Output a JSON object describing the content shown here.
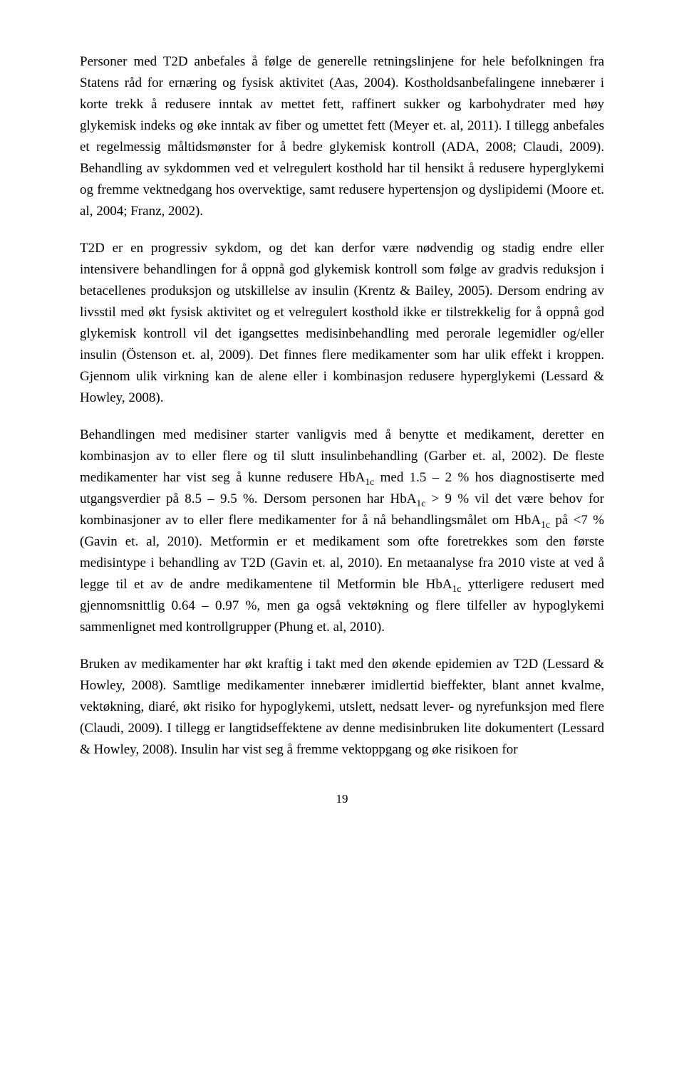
{
  "document": {
    "page_number": "19",
    "font_family": "Times New Roman",
    "text_color": "#000000",
    "background_color": "#ffffff",
    "font_size_pt": 12,
    "line_height": 1.58,
    "alignment": "justify",
    "paragraphs": [
      {
        "segments": [
          {
            "text": "Personer med T2D anbefales å følge de generelle retningslinjene for hele befolkningen fra Statens råd for ernæring og fysisk aktivitet (Aas, 2004). Kostholdsanbefalingene innebærer i korte trekk å redusere inntak av mettet fett, raffinert sukker og karbohydrater med høy glykemisk indeks og øke inntak av fiber og umettet fett (Meyer et. al, 2011). I tillegg anbefales et regelmessig måltidsmønster for å bedre glykemisk kontroll (ADA, 2008; Claudi, 2009). Behandling av sykdommen ved et velregulert kosthold har til hensikt å redusere hyperglykemi og fremme vektnedgang hos overvektige, samt redusere hypertensjon og dyslipidemi (Moore et. al, 2004; Franz, 2002)."
          }
        ]
      },
      {
        "segments": [
          {
            "text": "T2D er en progressiv sykdom, og det kan derfor være nødvendig og stadig endre eller intensivere behandlingen for å oppnå god glykemisk kontroll som følge av gradvis reduksjon i betacellenes produksjon og utskillelse av insulin (Krentz & Bailey, 2005). Dersom endring av livsstil med økt fysisk aktivitet og et velregulert kosthold ikke er tilstrekkelig for å oppnå god glykemisk kontroll vil det igangsettes medisinbehandling med perorale legemidler og/eller insulin (Östenson et. al, 2009). Det finnes flere medikamenter som har ulik effekt i kroppen. Gjennom ulik virkning kan de alene eller i kombinasjon redusere hyperglykemi (Lessard & Howley, 2008)."
          }
        ]
      },
      {
        "segments": [
          {
            "text": "Behandlingen med medisiner starter vanligvis med å benytte et medikament, deretter en kombinasjon av to eller flere og til slutt insulinbehandling (Garber et. al, 2002). De fleste medikamenter har vist seg å kunne redusere HbA"
          },
          {
            "text": "1c",
            "sub": true
          },
          {
            "text": " med 1.5 – 2 % hos diagnostiserte med utgangsverdier på 8.5 – 9.5 %. Dersom personen har HbA"
          },
          {
            "text": "1c",
            "sub": true
          },
          {
            "text": " > 9 % vil det være behov for kombinasjoner av to eller flere medikamenter for å nå behandlingsmålet om HbA"
          },
          {
            "text": "1c",
            "sub": true
          },
          {
            "text": " på <7 % (Gavin et. al, 2010).  Metformin er et medikament som ofte foretrekkes som den første medisintype i behandling av T2D (Gavin et. al, 2010). En metaanalyse fra 2010 viste at ved å legge til et av de andre medikamentene til Metformin ble HbA"
          },
          {
            "text": "1c",
            "sub": true
          },
          {
            "text": " ytterligere redusert med gjennomsnittlig 0.64 – 0.97 %, men ga også vektøkning og flere tilfeller av hypoglykemi sammenlignet med kontrollgrupper (Phung et. al, 2010)."
          }
        ]
      },
      {
        "segments": [
          {
            "text": "Bruken av medikamenter har økt kraftig i takt med den økende epidemien av T2D (Lessard & Howley, 2008). Samtlige medikamenter innebærer imidlertid bieffekter, blant annet kvalme, vektøkning, diaré, økt risiko for hypoglykemi, utslett, nedsatt lever- og nyrefunksjon med flere (Claudi, 2009). I tillegg er langtidseffektene av denne medisinbruken lite dokumentert (Lessard & Howley, 2008). Insulin har vist seg å fremme vektoppgang og øke risikoen for"
          }
        ]
      }
    ]
  }
}
